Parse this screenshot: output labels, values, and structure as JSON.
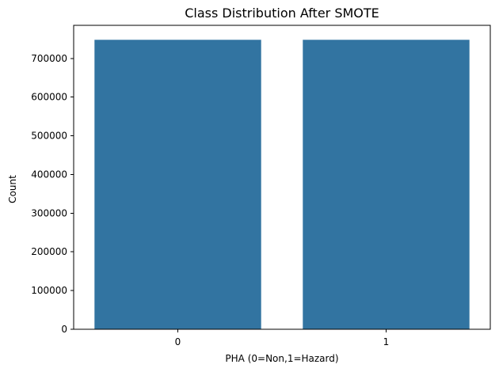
{
  "chart_data": {
    "type": "bar",
    "title": "Class Distribution After SMOTE",
    "xlabel": "PHA (0=Non,1=Hazard)",
    "ylabel": "Count",
    "categories": [
      "0",
      "1"
    ],
    "values": [
      748000,
      748000
    ],
    "ylim": [
      0,
      785400
    ],
    "yticks": [
      0,
      100000,
      200000,
      300000,
      400000,
      500000,
      600000,
      700000
    ],
    "grid": false,
    "legend": "none",
    "bar_color": "#3274a1"
  }
}
